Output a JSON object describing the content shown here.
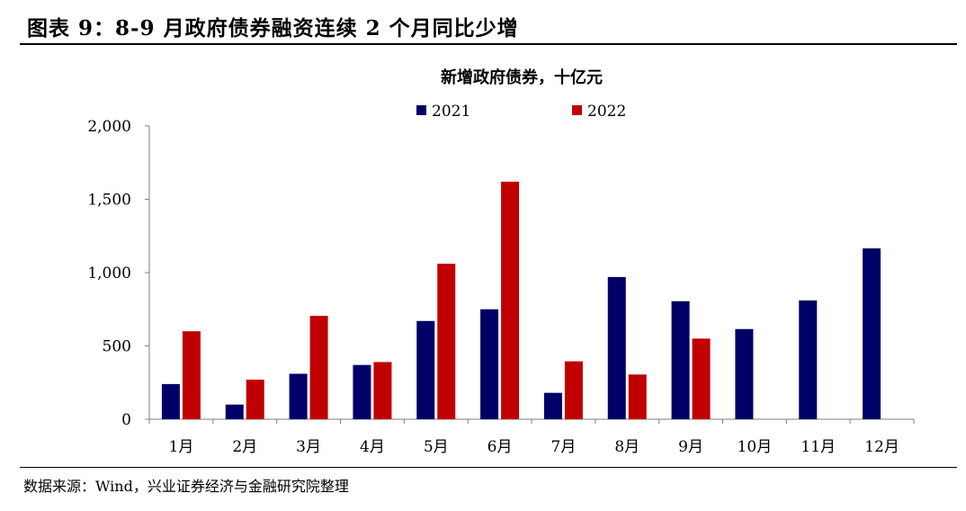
{
  "figure": {
    "title": "图表 9：8-9 月政府债券融资连续 2 个月同比少增",
    "source": "数据来源：Wind，兴业证券经济与金融研究院整理"
  },
  "chart_data": {
    "type": "bar",
    "title": "新增政府债券，十亿元",
    "xlabel": "",
    "ylabel": "",
    "ylim": [
      0,
      2000
    ],
    "yticks": [
      0,
      500,
      1000,
      1500,
      2000
    ],
    "ytick_labels": [
      "0",
      "500",
      "1,000",
      "1,500",
      "2,000"
    ],
    "grid": false,
    "legend_position": "top-center",
    "categories": [
      "1月",
      "2月",
      "3月",
      "4月",
      "5月",
      "6月",
      "7月",
      "8月",
      "9月",
      "10月",
      "11月",
      "12月"
    ],
    "series": [
      {
        "name": "2021",
        "color": "#000066",
        "values": [
          240,
          100,
          310,
          370,
          670,
          750,
          180,
          970,
          805,
          615,
          810,
          1165
        ]
      },
      {
        "name": "2022",
        "color": "#c00000",
        "values": [
          600,
          270,
          705,
          390,
          1060,
          1620,
          395,
          305,
          550,
          null,
          null,
          null
        ]
      }
    ]
  }
}
